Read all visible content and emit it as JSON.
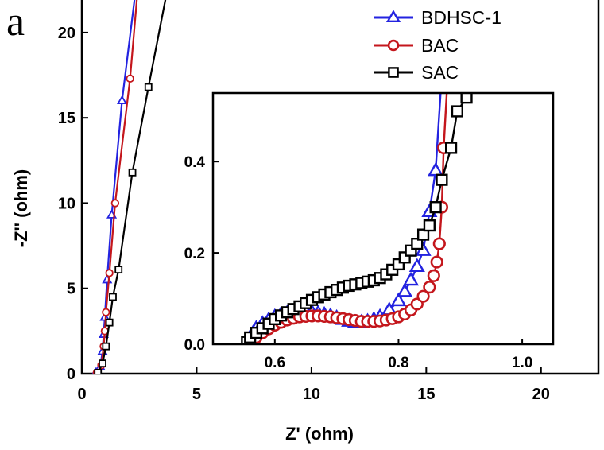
{
  "panel_label": "a",
  "colors": {
    "BDHSC-1": "#2323e0",
    "BAC": "#c4161c",
    "SAC": "#000000"
  },
  "chart_data": [
    {
      "id": "main",
      "type": "scatter",
      "title": "",
      "xlabel": "Z' (ohm)",
      "ylabel": "-Z'' (ohm)",
      "xlim": [
        0,
        22.5
      ],
      "ylim": [
        0,
        22
      ],
      "xticks": [
        0,
        5,
        10,
        15,
        20
      ],
      "yticks": [
        0,
        5,
        10,
        15,
        20
      ],
      "grid": false,
      "legend_position": "top-right",
      "series": [
        {
          "name": "BDHSC-1",
          "marker": "triangle",
          "x": [
            0.6,
            0.8,
            0.9,
            0.95,
            1.0,
            1.1,
            1.3,
            1.75
          ],
          "y": [
            0.05,
            0.4,
            1.3,
            2.3,
            3.3,
            5.5,
            9.3,
            16.0
          ],
          "line_end": [
            2.3,
            22
          ]
        },
        {
          "name": "BAC",
          "marker": "circle",
          "x": [
            0.65,
            0.85,
            0.95,
            1.0,
            1.05,
            1.2,
            1.45,
            2.1
          ],
          "y": [
            0.05,
            0.5,
            1.6,
            2.5,
            3.6,
            5.9,
            10.0,
            17.3
          ],
          "line_end": [
            2.4,
            22
          ]
        },
        {
          "name": "SAC",
          "marker": "square",
          "x": [
            0.7,
            0.9,
            1.05,
            1.2,
            1.35,
            1.6,
            2.2,
            2.9
          ],
          "y": [
            0.05,
            0.6,
            1.6,
            3.0,
            4.5,
            6.1,
            11.8,
            16.8
          ],
          "line_end": [
            3.65,
            22
          ]
        }
      ]
    },
    {
      "id": "inset",
      "type": "scatter",
      "title": "",
      "xlim": [
        0.5,
        1.05
      ],
      "ylim": [
        0.0,
        0.55
      ],
      "xticks": [
        0.6,
        0.8,
        1.0
      ],
      "yticks": [
        0.0,
        0.2,
        0.4
      ],
      "grid": false,
      "series": [
        {
          "name": "BDHSC-1",
          "marker": "triangle",
          "x": [
            0.555,
            0.56,
            0.565,
            0.57,
            0.58,
            0.59,
            0.6,
            0.61,
            0.62,
            0.63,
            0.64,
            0.65,
            0.66,
            0.67,
            0.68,
            0.69,
            0.7,
            0.71,
            0.72,
            0.73,
            0.74,
            0.75,
            0.76,
            0.77,
            0.785,
            0.8,
            0.81,
            0.82,
            0.83,
            0.84,
            0.85,
            0.86
          ],
          "y": [
            0.005,
            0.015,
            0.025,
            0.035,
            0.045,
            0.053,
            0.06,
            0.065,
            0.068,
            0.07,
            0.071,
            0.071,
            0.07,
            0.068,
            0.065,
            0.062,
            0.058,
            0.054,
            0.05,
            0.048,
            0.048,
            0.05,
            0.054,
            0.06,
            0.075,
            0.095,
            0.115,
            0.14,
            0.17,
            0.205,
            0.29,
            0.38
          ],
          "line_end": [
            0.868,
            0.55
          ]
        },
        {
          "name": "BAC",
          "marker": "circle",
          "x": [
            0.56,
            0.57,
            0.58,
            0.59,
            0.6,
            0.61,
            0.62,
            0.63,
            0.64,
            0.65,
            0.66,
            0.67,
            0.68,
            0.69,
            0.7,
            0.71,
            0.72,
            0.73,
            0.74,
            0.75,
            0.76,
            0.77,
            0.78,
            0.79,
            0.8,
            0.81,
            0.82,
            0.83,
            0.84,
            0.85,
            0.857,
            0.862,
            0.866,
            0.87,
            0.873
          ],
          "y": [
            0.005,
            0.015,
            0.025,
            0.034,
            0.042,
            0.048,
            0.053,
            0.057,
            0.06,
            0.061,
            0.062,
            0.062,
            0.061,
            0.06,
            0.058,
            0.056,
            0.054,
            0.052,
            0.05,
            0.05,
            0.05,
            0.051,
            0.053,
            0.056,
            0.06,
            0.066,
            0.075,
            0.088,
            0.105,
            0.125,
            0.15,
            0.18,
            0.22,
            0.3,
            0.43
          ],
          "line_end": [
            0.878,
            0.55
          ]
        },
        {
          "name": "SAC",
          "marker": "square",
          "x": [
            0.555,
            0.56,
            0.57,
            0.58,
            0.59,
            0.6,
            0.61,
            0.62,
            0.63,
            0.64,
            0.65,
            0.66,
            0.67,
            0.68,
            0.69,
            0.7,
            0.71,
            0.72,
            0.73,
            0.74,
            0.75,
            0.76,
            0.77,
            0.78,
            0.79,
            0.8,
            0.81,
            0.82,
            0.83,
            0.84,
            0.85,
            0.86,
            0.87,
            0.885,
            0.895,
            0.91
          ],
          "y": [
            0.005,
            0.015,
            0.025,
            0.035,
            0.045,
            0.055,
            0.063,
            0.07,
            0.077,
            0.083,
            0.09,
            0.097,
            0.103,
            0.109,
            0.114,
            0.119,
            0.124,
            0.128,
            0.131,
            0.134,
            0.137,
            0.14,
            0.145,
            0.153,
            0.163,
            0.175,
            0.19,
            0.205,
            0.22,
            0.24,
            0.26,
            0.3,
            0.36,
            0.43,
            0.51,
            0.54
          ],
          "line_end": [
            0.918,
            0.55
          ]
        }
      ]
    }
  ]
}
